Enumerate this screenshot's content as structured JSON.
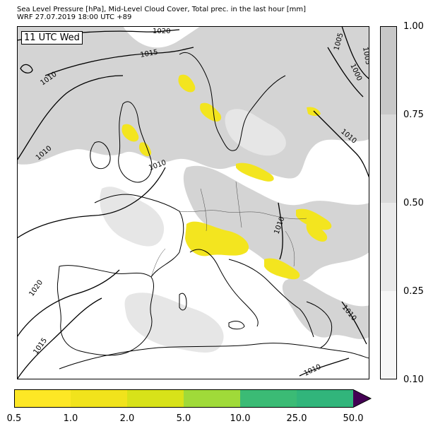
{
  "title": {
    "line1": "Sea Level Pressure [hPa], Mid-Level Cloud Cover, Total prec. in the last hour [mm]",
    "line2": "WRF 27.07.2019 18:00 UTC +89"
  },
  "time_badge": "11 UTC Wed",
  "isobar_labels": [
    "1020",
    "1015",
    "1010",
    "1010",
    "1010",
    "1005",
    "1000",
    "1010",
    "1010",
    "1010",
    "1020",
    "1015",
    "1005",
    "1010"
  ],
  "cloud_colorbar": {
    "ticks": [
      "1.00",
      "0.75",
      "0.50",
      "0.25",
      "0.10"
    ],
    "colors": [
      "#c8c8c8",
      "#d9d9d9",
      "#e9e9e9",
      "#f6f6f6"
    ]
  },
  "precip_colorbar": {
    "ticks": [
      "0.5",
      "1.0",
      "2.0",
      "5.0",
      "10.0",
      "25.0",
      "50.0"
    ],
    "colors": [
      "#fde725",
      "#f1e31c",
      "#d8e219",
      "#a0da39",
      "#3bbb75",
      "#31b57b",
      "#3b528b"
    ],
    "extend_color": "#440154"
  },
  "colors": {
    "land": "#ffffff",
    "cloud_mid": "#cfcfcf",
    "cloud_light": "#e4e4e4",
    "precip": "#f3e51f",
    "isobar": "#000000",
    "coast": "#000000"
  }
}
